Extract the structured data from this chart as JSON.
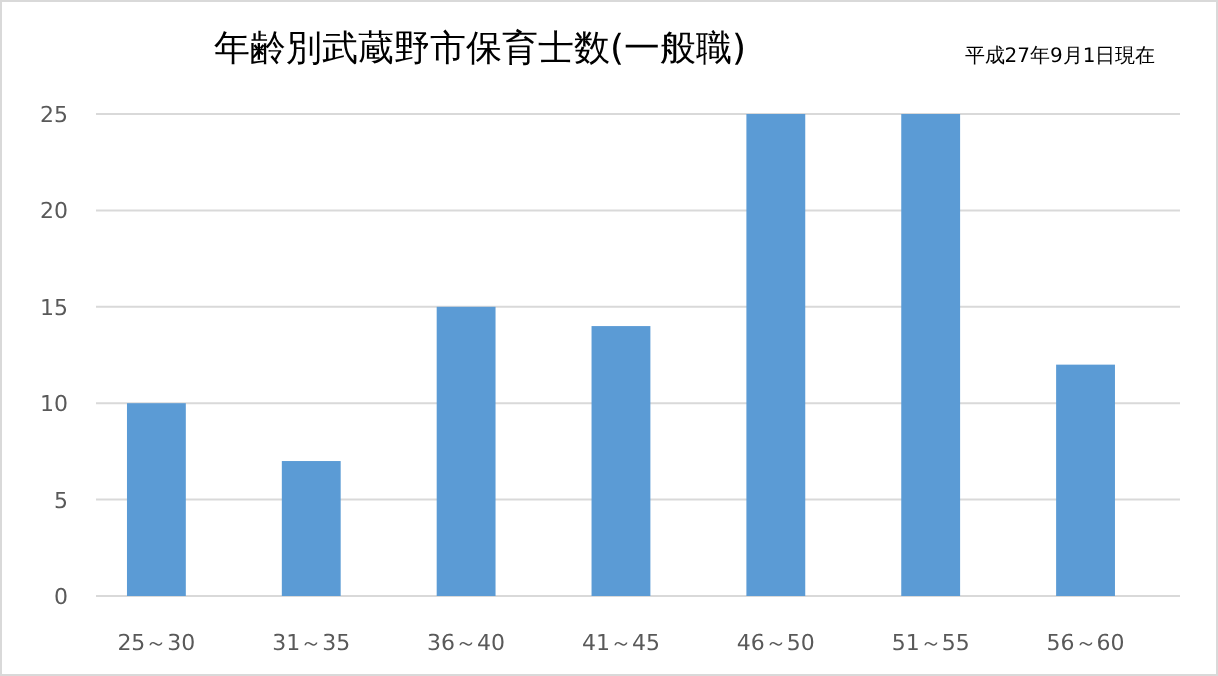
{
  "chart_data": {
    "type": "bar",
    "title": "年齢別武蔵野市保育士数(一般職)",
    "annotations": [
      "平成27年9月1日現在"
    ],
    "categories": [
      "25～30",
      "31～35",
      "36～40",
      "41～45",
      "46～50",
      "51～55",
      "56～60"
    ],
    "values": [
      10,
      7,
      15,
      14,
      25,
      25,
      12
    ],
    "color": "#5b9bd5",
    "ylim": [
      0,
      25
    ],
    "yticks": [
      0,
      5,
      10,
      15,
      20,
      25
    ],
    "grid": "y"
  }
}
